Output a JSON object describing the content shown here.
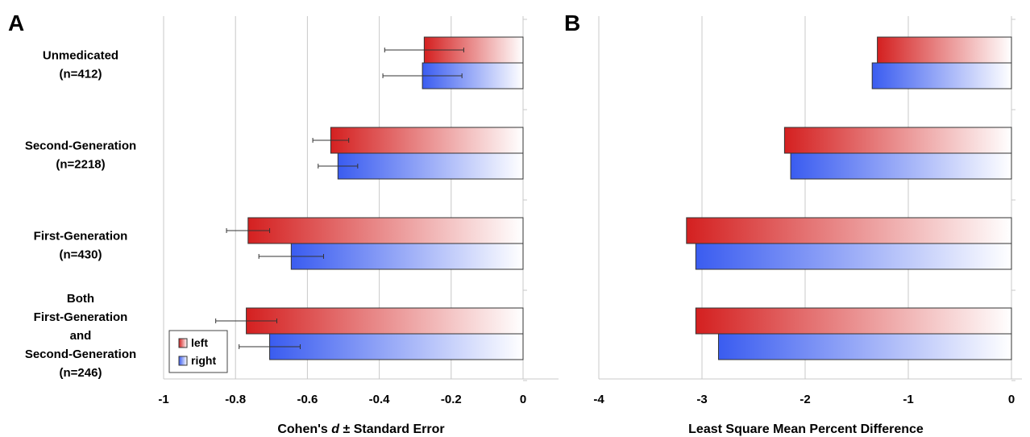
{
  "chart_data": [
    {
      "type": "bar",
      "orientation": "horizontal",
      "panel": "A",
      "categories": [
        [
          "Unmedicated",
          "(n=412)"
        ],
        [
          "Second-Generation",
          "(n=2218)"
        ],
        [
          "First-Generation",
          "(n=430)"
        ],
        [
          "Both",
          "First-Generation",
          "and",
          "Second-Generation",
          "(n=246)"
        ]
      ],
      "series": [
        {
          "name": "left",
          "color": "#d42020",
          "values": [
            -0.275,
            -0.535,
            -0.765,
            -0.77
          ],
          "errors": [
            0.11,
            0.05,
            0.06,
            0.085
          ]
        },
        {
          "name": "right",
          "color": "#3a5cf0",
          "values": [
            -0.28,
            -0.515,
            -0.645,
            -0.705
          ],
          "errors": [
            0.11,
            0.055,
            0.09,
            0.085
          ]
        }
      ],
      "xlabel_parts": [
        "Cohen's ",
        "d",
        " ± Standard Error"
      ],
      "xlim": [
        -1,
        0
      ],
      "xticks": [
        "-1",
        "-0.8",
        "-0.6",
        "-0.4",
        "-0.2",
        "0"
      ],
      "xtick_values": [
        -1,
        -0.8,
        -0.6,
        -0.4,
        -0.2,
        0
      ],
      "grid": true,
      "legend_position": "bottom-left"
    },
    {
      "type": "bar",
      "orientation": "horizontal",
      "panel": "B",
      "series": [
        {
          "name": "left",
          "color": "#d42020",
          "values": [
            -1.3,
            -2.2,
            -3.15,
            -3.06
          ]
        },
        {
          "name": "right",
          "color": "#3a5cf0",
          "values": [
            -1.35,
            -2.14,
            -3.06,
            -2.84
          ]
        }
      ],
      "xlabel": "Least Square Mean Percent Difference",
      "xlim": [
        -4,
        0
      ],
      "xticks": [
        "-4",
        "-3",
        "-2",
        "-1",
        "0"
      ],
      "xtick_values": [
        -4,
        -3,
        -2,
        -1,
        0
      ],
      "grid": true
    }
  ]
}
